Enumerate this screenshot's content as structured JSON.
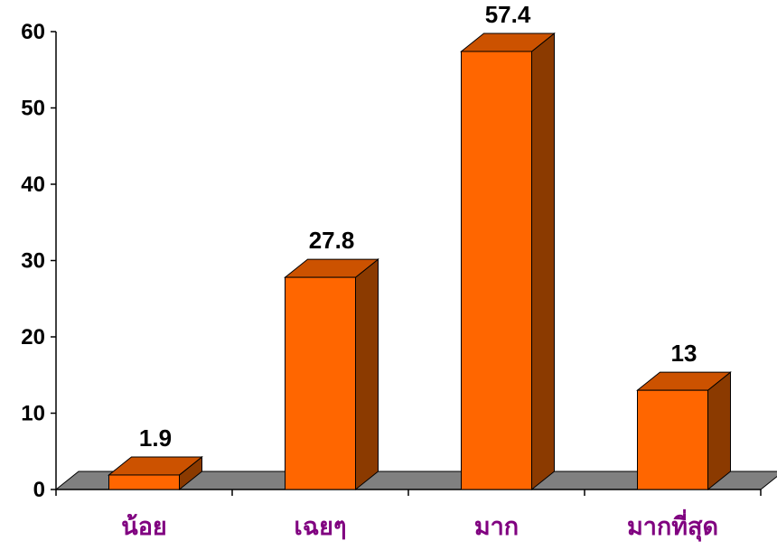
{
  "chart_data": {
    "type": "bar",
    "categories": [
      "น้อย",
      "เฉยๆ",
      "มาก",
      "มากที่สุด"
    ],
    "values": [
      1.9,
      27.8,
      57.4,
      13
    ],
    "data_labels": [
      "1.9",
      "27.8",
      "57.4",
      "13"
    ],
    "yticks": [
      "0",
      "10",
      "20",
      "30",
      "40",
      "50",
      "60"
    ],
    "ylim": [
      0,
      60
    ],
    "title": "",
    "xlabel": "",
    "ylabel": "",
    "grid": false,
    "style": "3d",
    "colors": {
      "bar_front": "#FF6600",
      "bar_top": "#CC5200",
      "bar_side": "#8B3A00",
      "floor": "#808080",
      "category_text": "#800080"
    }
  }
}
